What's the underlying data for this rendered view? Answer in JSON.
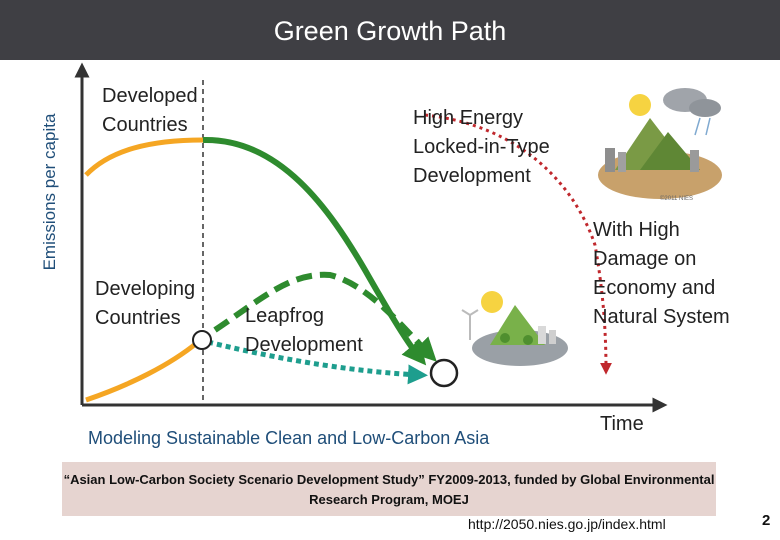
{
  "slide": {
    "title": "Green Growth Path",
    "y_axis_label": "Emissions per capita",
    "x_axis_label": "Time",
    "labels": {
      "developed": "Developed\nCountries",
      "developing": "Developing\nCountries",
      "leapfrog": "Leapfrog\nDevelopment",
      "high_energy": "High Energy\nLocked-in-Type\nDevelopment",
      "high_damage": "With High\nDamage on\nEconomy and\nNatural System"
    },
    "footer_caption": "Modeling Sustainable Clean and  Low-Carbon Asia",
    "citation": "“Asian Low-Carbon Society Scenario Development Study” FY2009-2013, funded by Global Environmental Research Program, MOEJ",
    "url": "http://2050.nies.go.jp/index.html",
    "page_number": "2",
    "image_credit": "©2011 NIES"
  },
  "colors": {
    "title_bar": "#3f3f44",
    "developed_curve": "#f5a623",
    "green_path": "#2e8b2e",
    "leapfrog_path": "#1e9e8e",
    "damage_path": "#c0282d",
    "axis": "#333333",
    "citation_bg": "#e6d4d0"
  },
  "icons": [
    "city-landscape-illustration",
    "green-city-illustration"
  ]
}
